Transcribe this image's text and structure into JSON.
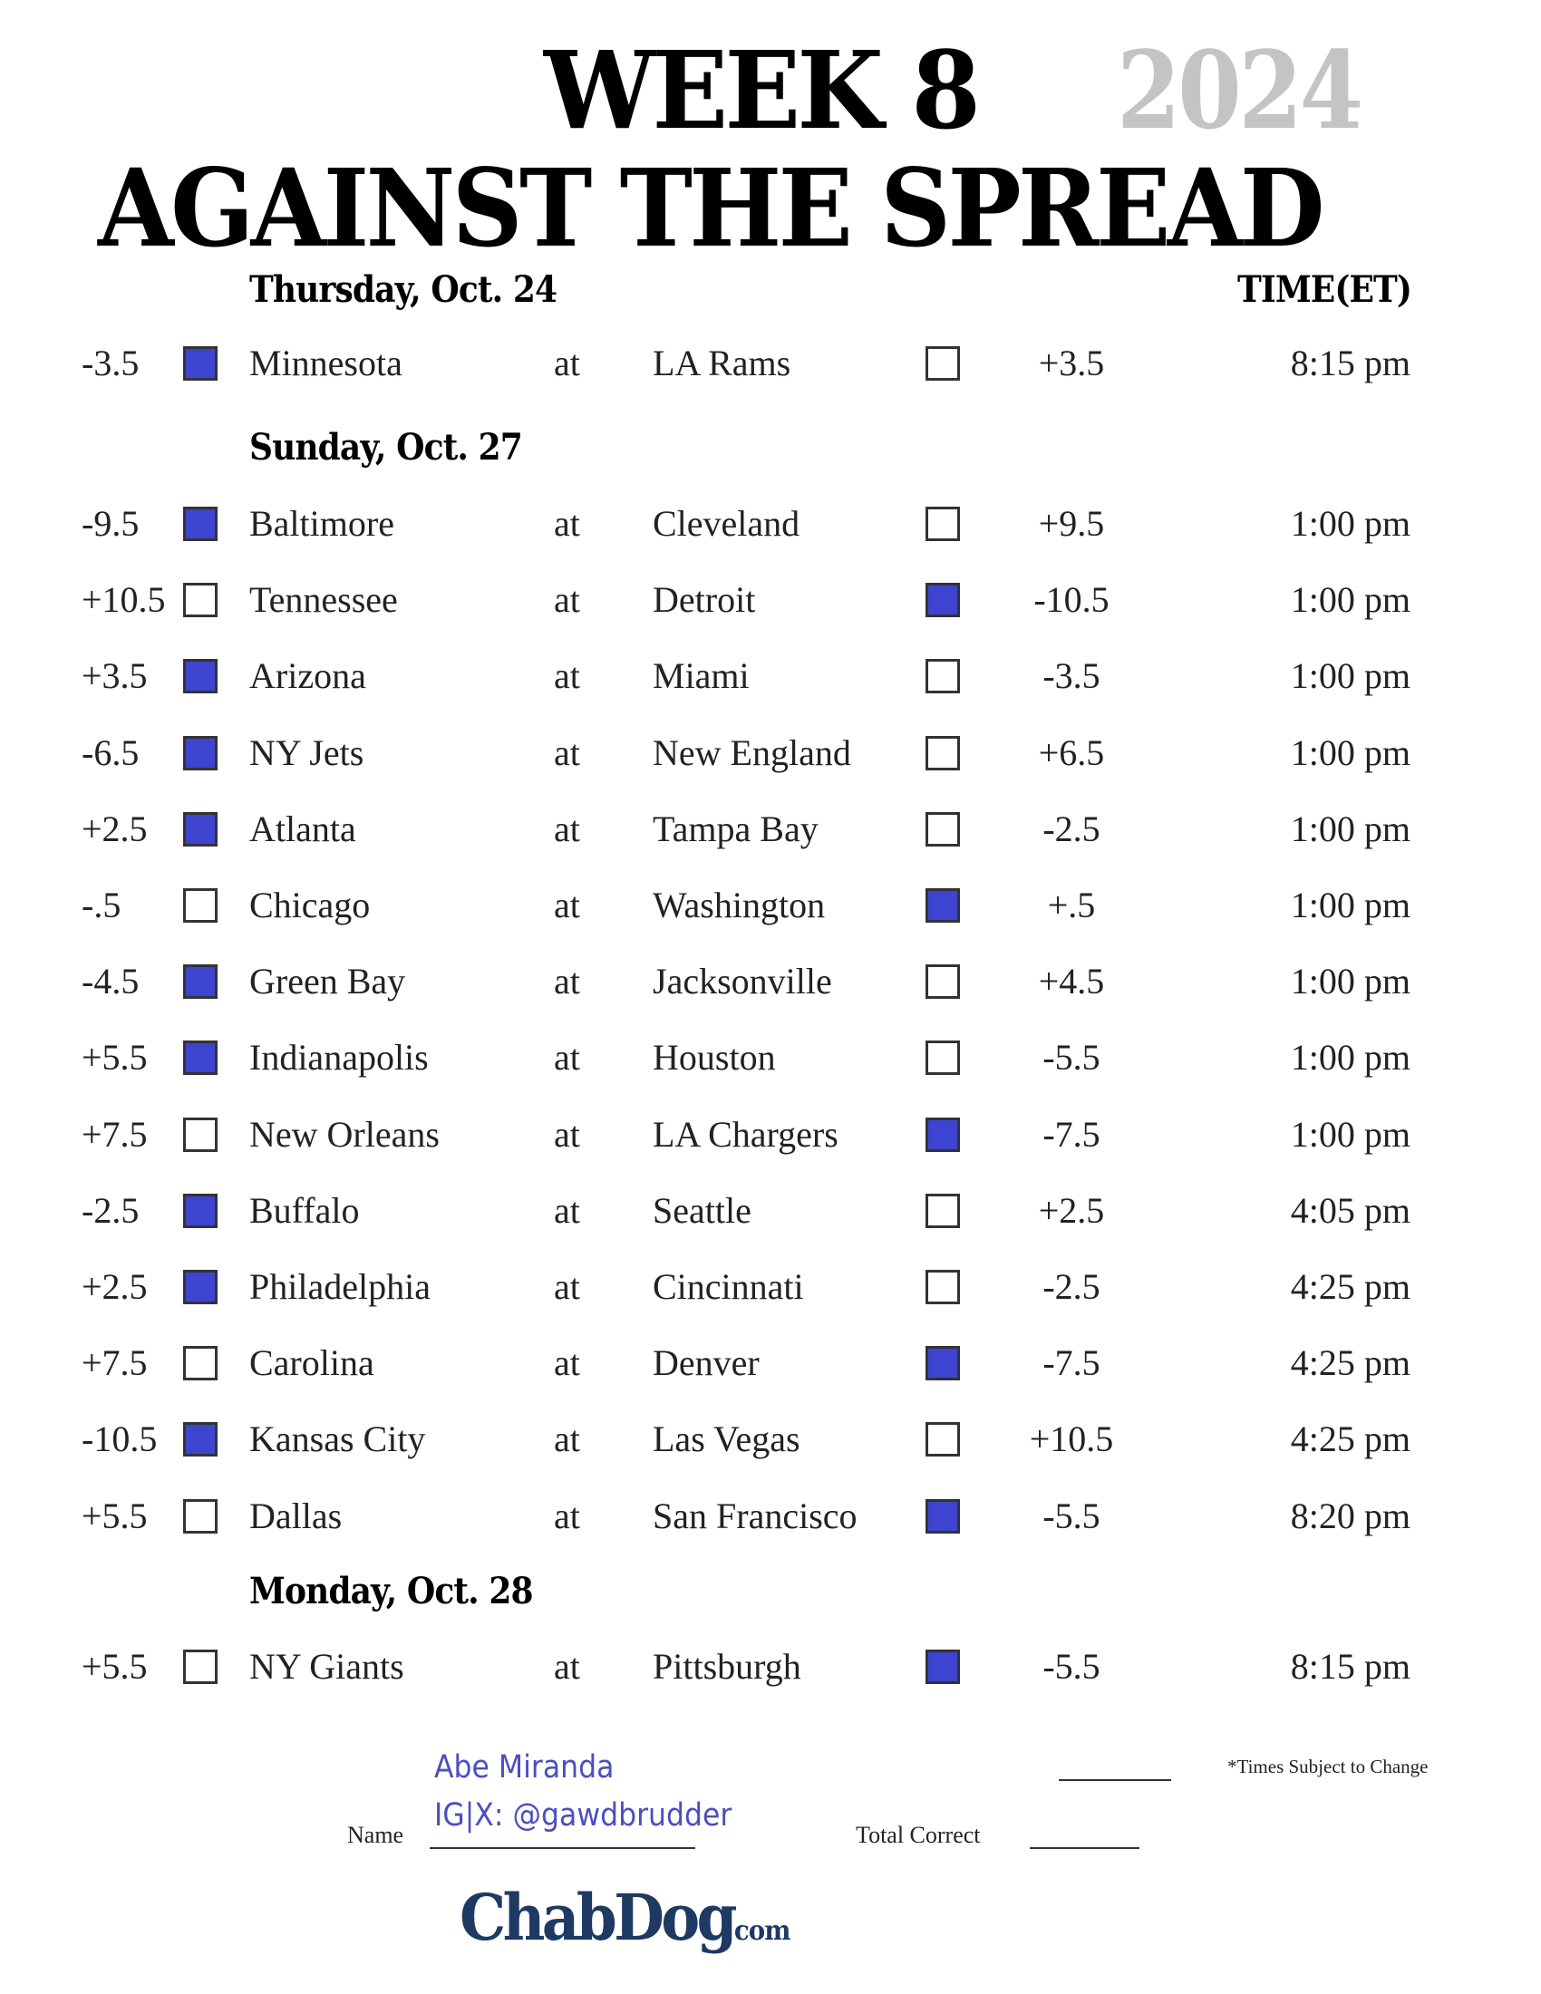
{
  "header": {
    "week": "WEEK 8",
    "year": "2024",
    "title": "AGAINST THE SPREAD",
    "time_header": "TIME(ET)"
  },
  "colors": {
    "pick_fill": "#3c44d0",
    "year_gray": "#c4c4c4",
    "handwriting": "#4a4fc0",
    "logo": "#1e3a63"
  },
  "days": [
    {
      "label": "Thursday, Oct. 24",
      "games": [
        {
          "spread_away": "-3.5",
          "away": "Minnesota",
          "at": "at",
          "home": "LA Rams",
          "spread_home": "+3.5",
          "time": "8:15 pm",
          "pick": "away"
        }
      ]
    },
    {
      "label": "Sunday, Oct. 27",
      "games": [
        {
          "spread_away": "-9.5",
          "away": "Baltimore",
          "at": "at",
          "home": "Cleveland",
          "spread_home": "+9.5",
          "time": "1:00 pm",
          "pick": "away"
        },
        {
          "spread_away": "+10.5",
          "away": "Tennessee",
          "at": "at",
          "home": "Detroit",
          "spread_home": "-10.5",
          "time": "1:00 pm",
          "pick": "home"
        },
        {
          "spread_away": "+3.5",
          "away": "Arizona",
          "at": "at",
          "home": "Miami",
          "spread_home": "-3.5",
          "time": "1:00 pm",
          "pick": "away"
        },
        {
          "spread_away": "-6.5",
          "away": "NY Jets",
          "at": "at",
          "home": "New England",
          "spread_home": "+6.5",
          "time": "1:00 pm",
          "pick": "away"
        },
        {
          "spread_away": "+2.5",
          "away": "Atlanta",
          "at": "at",
          "home": "Tampa Bay",
          "spread_home": "-2.5",
          "time": "1:00 pm",
          "pick": "away"
        },
        {
          "spread_away": "-.5",
          "away": "Chicago",
          "at": "at",
          "home": "Washington",
          "spread_home": "+.5",
          "time": "1:00 pm",
          "pick": "home"
        },
        {
          "spread_away": "-4.5",
          "away": "Green Bay",
          "at": "at",
          "home": "Jacksonville",
          "spread_home": "+4.5",
          "time": "1:00 pm",
          "pick": "away"
        },
        {
          "spread_away": "+5.5",
          "away": "Indianapolis",
          "at": "at",
          "home": "Houston",
          "spread_home": "-5.5",
          "time": "1:00 pm",
          "pick": "away"
        },
        {
          "spread_away": "+7.5",
          "away": "New Orleans",
          "at": "at",
          "home": "LA Chargers",
          "spread_home": "-7.5",
          "time": "1:00 pm",
          "pick": "home"
        },
        {
          "spread_away": "-2.5",
          "away": "Buffalo",
          "at": "at",
          "home": "Seattle",
          "spread_home": "+2.5",
          "time": "4:05 pm",
          "pick": "away"
        },
        {
          "spread_away": "+2.5",
          "away": "Philadelphia",
          "at": "at",
          "home": "Cincinnati",
          "spread_home": "-2.5",
          "time": "4:25 pm",
          "pick": "away"
        },
        {
          "spread_away": "+7.5",
          "away": "Carolina",
          "at": "at",
          "home": "Denver",
          "spread_home": "-7.5",
          "time": "4:25 pm",
          "pick": "home"
        },
        {
          "spread_away": "-10.5",
          "away": "Kansas City",
          "at": "at",
          "home": "Las Vegas",
          "spread_home": "+10.5",
          "time": "4:25 pm",
          "pick": "away"
        },
        {
          "spread_away": "+5.5",
          "away": "Dallas",
          "at": "at",
          "home": "San Francisco",
          "spread_home": "-5.5",
          "time": "8:20 pm",
          "pick": "home"
        }
      ]
    },
    {
      "label": "Monday, Oct. 28",
      "games": [
        {
          "spread_away": "+5.5",
          "away": "NY Giants",
          "at": "at",
          "home": "Pittsburgh",
          "spread_home": "-5.5",
          "time": "8:15 pm",
          "pick": "home"
        }
      ]
    }
  ],
  "footer": {
    "name_label": "Name",
    "name_value_line1": "Abe Miranda",
    "name_value_line2": "IG|X: @gawdbrudder",
    "total_label": "Total Correct",
    "note": "*Times Subject to Change",
    "logo_main": "ChabDog",
    "logo_suffix": "com"
  }
}
